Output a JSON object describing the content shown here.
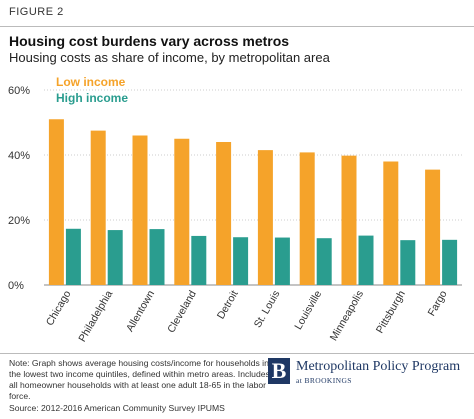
{
  "figure_label": "FIGURE 2",
  "title": "Housing cost burdens vary across metros",
  "subtitle": "Housing costs as share of income, by metropolitan area",
  "note": "Note: Graph shows average housing costs/income for households in the lowest two income quintiles, defined within metro areas. Includes all homeowner households with at least one adult 18-65 in the labor force.",
  "source": "Source: 2012-2016 American Community Survey IPUMS",
  "brand": {
    "mark": "B",
    "name": "Metropolitan Policy Program",
    "sub": "at BROOKINGS"
  },
  "colors": {
    "low_income": "#F5A32A",
    "high_income": "#2A9D8F",
    "axis": "#888888",
    "grid": "#cccccc",
    "text": "#333333"
  },
  "chart_data": {
    "type": "bar",
    "categories": [
      "Chicago",
      "Philadelphia",
      "Allentown",
      "Cleveland",
      "Detroit",
      "St. Louis",
      "Louisville",
      "Minneapolis",
      "Pittsburgh",
      "Fargo"
    ],
    "series": [
      {
        "name": "Low income",
        "values": [
          51,
          47.5,
          46,
          45,
          44,
          41.5,
          40.8,
          39.8,
          38,
          35.5
        ]
      },
      {
        "name": "High income",
        "values": [
          17.3,
          16.9,
          17.2,
          15.1,
          14.7,
          14.6,
          14.4,
          15.2,
          13.8,
          13.9
        ]
      }
    ],
    "ylim": [
      0,
      60
    ],
    "yticks": [
      0,
      20,
      40,
      60
    ],
    "ytick_labels": [
      "0%",
      "20%",
      "40%",
      "60%"
    ],
    "legend_position": "top-left"
  }
}
